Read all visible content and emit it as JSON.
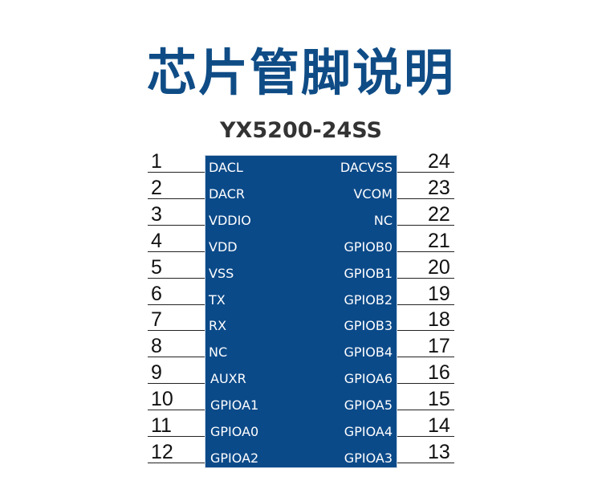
{
  "title": "芯片管脚说明",
  "chip_name": "YX5200-24SS",
  "colors": {
    "title": "#0f4c86",
    "chip_body": "#0b4a89",
    "pin_label": "#ffffff"
  },
  "left_pins": [
    {
      "number": "1",
      "name": "DACL"
    },
    {
      "number": "2",
      "name": "DACR"
    },
    {
      "number": "3",
      "name": "VDDIO"
    },
    {
      "number": "4",
      "name": "VDD"
    },
    {
      "number": "5",
      "name": "VSS"
    },
    {
      "number": "6",
      "name": "TX"
    },
    {
      "number": "7",
      "name": "RX"
    },
    {
      "number": "8",
      "name": "NC"
    },
    {
      "number": "9",
      "name": "AUXR"
    },
    {
      "number": "10",
      "name": "GPIOA1"
    },
    {
      "number": "11",
      "name": "GPIOA0"
    },
    {
      "number": "12",
      "name": "GPIOA2"
    }
  ],
  "right_pins": [
    {
      "number": "24",
      "name": "DACVSS"
    },
    {
      "number": "23",
      "name": "VCOM"
    },
    {
      "number": "22",
      "name": "NC"
    },
    {
      "number": "21",
      "name": "GPIOB0"
    },
    {
      "number": "20",
      "name": "GPIOB1"
    },
    {
      "number": "19",
      "name": "GPIOB2"
    },
    {
      "number": "18",
      "name": "GPIOB3"
    },
    {
      "number": "17",
      "name": "GPIOB4"
    },
    {
      "number": "16",
      "name": "GPIOA6"
    },
    {
      "number": "15",
      "name": "GPIOA5"
    },
    {
      "number": "14",
      "name": "GPIOA4"
    },
    {
      "number": "13",
      "name": "GPIOA3"
    }
  ]
}
